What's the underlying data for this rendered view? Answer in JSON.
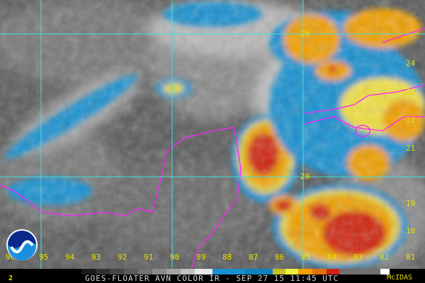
{
  "title": "GOES-FLOATER AVN COLOR IR - SEP 27 15 11:45 UTC",
  "frame_number": "2",
  "brand": "McIDAS",
  "logo_text": "NOAA",
  "longitude_labels": [
    "96",
    "95",
    "94",
    "93",
    "92",
    "91",
    "90",
    "89",
    "88",
    "87",
    "86",
    "85",
    "84",
    "83",
    "82",
    "81"
  ],
  "latitude_labels": [
    {
      "label": "25"
    },
    {
      "label": "24"
    },
    {
      "label": "23"
    },
    {
      "label": "22"
    },
    {
      "label": "21"
    },
    {
      "label": "20"
    },
    {
      "label": "19"
    },
    {
      "label": "18"
    }
  ],
  "colors": {
    "gridline": "#40e0e0",
    "coastline": "#ff20ff",
    "label": "#e8e000",
    "color_scale": [
      "#000000",
      "#202020",
      "#404040",
      "#606060",
      "#808080",
      "#a0a0a0",
      "#c8c8c8",
      "#f0f0f0",
      "#1890d0",
      "#1080c0",
      "#c8c020",
      "#f0f040",
      "#f0a000",
      "#e07010",
      "#d02010",
      "#707070",
      "#ffffff"
    ]
  }
}
